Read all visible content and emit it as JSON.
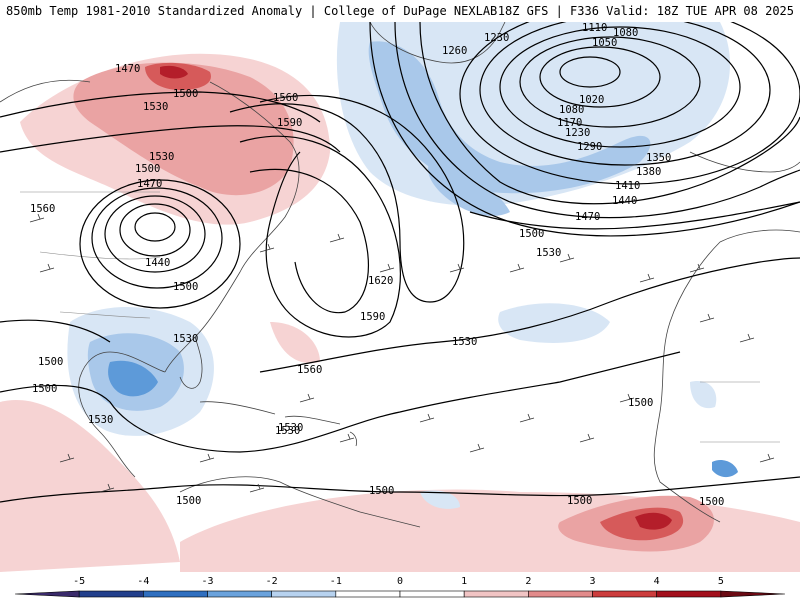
{
  "header": {
    "title": "850mb Temp 1981-2010 Standardized Anomaly | College of DuPage NEXLAB",
    "run_info": "18Z GFS | F336 Valid: 18Z TUE APR 08 2025"
  },
  "colors": {
    "ocean_bg": "#ffffff",
    "warm_1": "#f6d3d3",
    "warm_2": "#eaa3a3",
    "warm_3": "#d65a5a",
    "warm_4": "#b41e2a",
    "warm_5": "#7a0a14",
    "cold_1": "#d8e6f5",
    "cold_2": "#a9c8ea",
    "cold_3": "#5d9ad9",
    "cold_4": "#2e6fbf",
    "contour": "#000000",
    "coastline": "#444444"
  },
  "contours": [
    {
      "label": "1470"
    },
    {
      "label": "1500"
    },
    {
      "label": "1530"
    },
    {
      "label": "1560"
    },
    {
      "label": "1590"
    },
    {
      "label": "1530"
    },
    {
      "label": "1500"
    },
    {
      "label": "1470"
    },
    {
      "label": "1560"
    },
    {
      "label": "1440"
    },
    {
      "label": "1500"
    },
    {
      "label": "1530"
    },
    {
      "label": "1500"
    },
    {
      "label": "1530"
    },
    {
      "label": "1530"
    },
    {
      "label": "1500"
    },
    {
      "label": "1560"
    },
    {
      "label": "1590"
    },
    {
      "label": "1620"
    },
    {
      "label": "1530"
    },
    {
      "label": "1530"
    },
    {
      "label": "1500"
    },
    {
      "label": "1500"
    },
    {
      "label": "1500"
    },
    {
      "label": "1500"
    },
    {
      "label": "1530"
    },
    {
      "label": "1500"
    },
    {
      "label": "1470"
    },
    {
      "label": "1440"
    },
    {
      "label": "1410"
    },
    {
      "label": "1380"
    },
    {
      "label": "1350"
    },
    {
      "label": "1290"
    },
    {
      "label": "1230"
    },
    {
      "label": "1170"
    },
    {
      "label": "1080"
    },
    {
      "label": "1020"
    },
    {
      "label": "1260"
    },
    {
      "label": "1230"
    },
    {
      "label": "1110"
    },
    {
      "label": "1080"
    },
    {
      "label": "1050"
    },
    {
      "label": "1500"
    }
  ],
  "colorbar": {
    "ticks": [
      "-5",
      "-4",
      "-3",
      "-2",
      "-1",
      "0",
      "1",
      "2",
      "3",
      "4",
      "5"
    ],
    "segment_colors": [
      "#3a2a6b",
      "#223f8c",
      "#2f6fc0",
      "#6aa2dc",
      "#b7d2ef",
      "#ffffff",
      "#ffffff",
      "#f1c4c4",
      "#e28b8b",
      "#cc3d3d",
      "#a3101d",
      "#6b0a13"
    ]
  }
}
